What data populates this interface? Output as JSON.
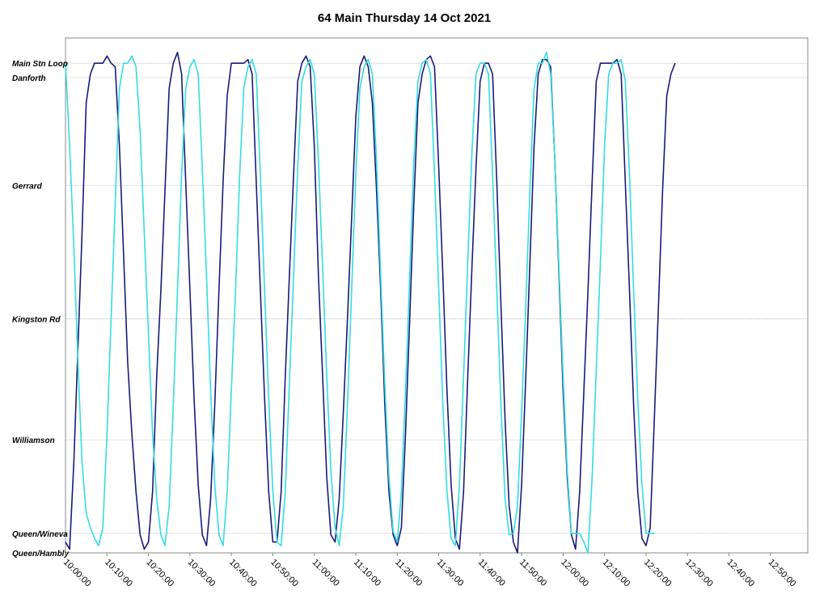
{
  "chart_data": {
    "type": "line",
    "title": "64 Main Thursday 14 Oct 2021",
    "xlabel": "",
    "ylabel": "",
    "x_ticks": [
      "10:00:00",
      "10:10:00",
      "10:20:00",
      "10:30:00",
      "10:40:00",
      "10:50:00",
      "11:00:00",
      "11:10:00",
      "11:20:00",
      "11:30:00",
      "11:40:00",
      "11:50:00",
      "12:00:00",
      "12:10:00",
      "12:20:00",
      "12:30:00",
      "12:40:00",
      "12:50:00"
    ],
    "xlim": [
      "10:00:00",
      "12:59:00"
    ],
    "y_stops": [
      {
        "name": "Main Stn Loop",
        "pos": 6.15
      },
      {
        "name": "Danforth",
        "pos": 5.95
      },
      {
        "name": "Gerrard",
        "pos": 4.45
      },
      {
        "name": "Kingston Rd",
        "pos": 2.6
      },
      {
        "name": "Williamson",
        "pos": 0.92
      },
      {
        "name": "Queen/Wineva",
        "pos": -0.38
      },
      {
        "name": "Queen/Hambly",
        "pos": -0.65
      }
    ],
    "ylim": [
      -0.65,
      6.5
    ],
    "grid": true,
    "legend": "none",
    "series": [
      {
        "color": "#1a1a7a",
        "points": [
          [
            "10:00",
            -0.5
          ],
          [
            "10:01",
            -0.6
          ],
          [
            "10:02",
            0.6
          ],
          [
            "10:03",
            2.2
          ],
          [
            "10:04",
            3.8
          ],
          [
            "10:05",
            5.6
          ],
          [
            "10:06",
            6.0
          ],
          [
            "10:07",
            6.15
          ],
          [
            "10:09",
            6.15
          ],
          [
            "10:10",
            6.25
          ],
          [
            "10:11",
            6.15
          ],
          [
            "10:12",
            6.1
          ],
          [
            "10:13",
            5.0
          ],
          [
            "10:14",
            3.5
          ],
          [
            "10:15",
            2.0
          ],
          [
            "10:16",
            1.0
          ],
          [
            "10:17",
            0.2
          ],
          [
            "10:18",
            -0.4
          ],
          [
            "10:19",
            -0.6
          ],
          [
            "10:20",
            -0.5
          ],
          [
            "10:21",
            0.2
          ],
          [
            "10:22",
            1.8
          ],
          [
            "10:23",
            3.0
          ],
          [
            "10:24",
            4.4
          ],
          [
            "10:25",
            5.8
          ],
          [
            "10:26",
            6.15
          ],
          [
            "10:27",
            6.3
          ],
          [
            "10:28",
            6.0
          ],
          [
            "10:29",
            4.5
          ],
          [
            "10:30",
            3.0
          ],
          [
            "10:31",
            1.5
          ],
          [
            "10:32",
            0.3
          ],
          [
            "10:33",
            -0.4
          ],
          [
            "10:34",
            -0.55
          ],
          [
            "10:35",
            0.1
          ],
          [
            "10:36",
            1.4
          ],
          [
            "10:37",
            3.0
          ],
          [
            "10:38",
            4.5
          ],
          [
            "10:39",
            5.7
          ],
          [
            "10:40",
            6.15
          ],
          [
            "10:41",
            6.15
          ],
          [
            "10:43",
            6.15
          ],
          [
            "10:44",
            6.2
          ],
          [
            "10:45",
            6.0
          ],
          [
            "10:46",
            4.5
          ],
          [
            "10:47",
            3.0
          ],
          [
            "10:48",
            1.5
          ],
          [
            "10:49",
            0.2
          ],
          [
            "10:50",
            -0.5
          ],
          [
            "10:51",
            -0.5
          ],
          [
            "10:52",
            0.2
          ],
          [
            "10:53",
            1.8
          ],
          [
            "10:54",
            3.2
          ],
          [
            "10:55",
            4.6
          ],
          [
            "10:56",
            5.9
          ],
          [
            "10:57",
            6.15
          ],
          [
            "10:58",
            6.25
          ],
          [
            "10:59",
            6.1
          ],
          [
            "11:00",
            5.0
          ],
          [
            "11:01",
            3.2
          ],
          [
            "11:02",
            1.8
          ],
          [
            "11:03",
            0.4
          ],
          [
            "11:04",
            -0.4
          ],
          [
            "11:05",
            -0.5
          ],
          [
            "11:06",
            0.1
          ],
          [
            "11:07",
            1.3
          ],
          [
            "11:08",
            2.6
          ],
          [
            "11:09",
            4.0
          ],
          [
            "11:10",
            5.4
          ],
          [
            "11:11",
            6.1
          ],
          [
            "11:12",
            6.25
          ],
          [
            "11:13",
            6.1
          ],
          [
            "11:14",
            5.6
          ],
          [
            "11:15",
            4.4
          ],
          [
            "11:16",
            3.0
          ],
          [
            "11:17",
            1.4
          ],
          [
            "11:18",
            0.2
          ],
          [
            "11:19",
            -0.4
          ],
          [
            "11:20",
            -0.55
          ],
          [
            "11:21",
            -0.3
          ],
          [
            "11:22",
            1.0
          ],
          [
            "11:23",
            2.6
          ],
          [
            "11:24",
            4.2
          ],
          [
            "11:25",
            5.6
          ],
          [
            "11:26",
            6.0
          ],
          [
            "11:27",
            6.2
          ],
          [
            "11:28",
            6.25
          ],
          [
            "11:29",
            6.1
          ],
          [
            "11:30",
            4.7
          ],
          [
            "11:31",
            3.2
          ],
          [
            "11:32",
            1.6
          ],
          [
            "11:33",
            0.3
          ],
          [
            "11:34",
            -0.45
          ],
          [
            "11:35",
            -0.6
          ],
          [
            "11:36",
            0.2
          ],
          [
            "11:37",
            1.8
          ],
          [
            "11:38",
            3.3
          ],
          [
            "11:39",
            4.7
          ],
          [
            "11:40",
            5.9
          ],
          [
            "11:41",
            6.15
          ],
          [
            "11:42",
            6.15
          ],
          [
            "11:43",
            6.0
          ],
          [
            "11:44",
            4.5
          ],
          [
            "11:45",
            2.8
          ],
          [
            "11:46",
            1.2
          ],
          [
            "11:47",
            0.0
          ],
          [
            "11:48",
            -0.5
          ],
          [
            "11:49",
            -0.7
          ],
          [
            "11:50",
            0.3
          ],
          [
            "11:51",
            1.8
          ],
          [
            "11:52",
            3.4
          ],
          [
            "11:53",
            5.0
          ],
          [
            "11:54",
            6.0
          ],
          [
            "11:55",
            6.2
          ],
          [
            "11:56",
            6.2
          ],
          [
            "11:57",
            6.1
          ],
          [
            "11:58",
            4.8
          ],
          [
            "11:59",
            3.2
          ],
          [
            "12:00",
            1.6
          ],
          [
            "12:01",
            0.4
          ],
          [
            "12:02",
            -0.4
          ],
          [
            "12:03",
            -0.6
          ],
          [
            "12:04",
            0.2
          ],
          [
            "12:05",
            1.6
          ],
          [
            "12:06",
            3.0
          ],
          [
            "12:07",
            4.5
          ],
          [
            "12:08",
            5.9
          ],
          [
            "12:09",
            6.15
          ],
          [
            "12:10",
            6.15
          ],
          [
            "12:12",
            6.15
          ],
          [
            "12:13",
            6.2
          ],
          [
            "12:14",
            6.0
          ],
          [
            "12:15",
            4.5
          ],
          [
            "12:16",
            3.0
          ],
          [
            "12:17",
            1.4
          ],
          [
            "12:18",
            0.2
          ],
          [
            "12:19",
            -0.45
          ],
          [
            "12:20",
            -0.55
          ],
          [
            "12:21",
            -0.3
          ],
          [
            "12:22",
            1.2
          ],
          [
            "12:23",
            2.8
          ],
          [
            "12:24",
            4.4
          ],
          [
            "12:25",
            5.7
          ],
          [
            "12:26",
            6.0
          ],
          [
            "12:27",
            6.15
          ]
        ]
      },
      {
        "color": "#33dddd",
        "points": [
          [
            "10:00",
            6.15
          ],
          [
            "10:01",
            5.0
          ],
          [
            "10:02",
            3.6
          ],
          [
            "10:03",
            2.0
          ],
          [
            "10:04",
            0.6
          ],
          [
            "10:05",
            -0.1
          ],
          [
            "10:06",
            -0.3
          ],
          [
            "10:07",
            -0.45
          ],
          [
            "10:08",
            -0.55
          ],
          [
            "10:09",
            -0.3
          ],
          [
            "10:10",
            1.0
          ],
          [
            "10:11",
            2.6
          ],
          [
            "10:12",
            4.2
          ],
          [
            "10:13",
            5.8
          ],
          [
            "10:14",
            6.15
          ],
          [
            "10:15",
            6.15
          ],
          [
            "10:16",
            6.25
          ],
          [
            "10:17",
            6.1
          ],
          [
            "10:18",
            5.2
          ],
          [
            "10:19",
            3.8
          ],
          [
            "10:20",
            2.4
          ],
          [
            "10:21",
            1.0
          ],
          [
            "10:22",
            0.1
          ],
          [
            "10:23",
            -0.4
          ],
          [
            "10:24",
            -0.55
          ],
          [
            "10:25",
            0.0
          ],
          [
            "10:26",
            1.4
          ],
          [
            "10:27",
            3.0
          ],
          [
            "10:28",
            4.6
          ],
          [
            "10:29",
            5.8
          ],
          [
            "10:30",
            6.1
          ],
          [
            "10:31",
            6.2
          ],
          [
            "10:32",
            6.0
          ],
          [
            "10:33",
            4.7
          ],
          [
            "10:34",
            3.2
          ],
          [
            "10:35",
            1.6
          ],
          [
            "10:36",
            0.3
          ],
          [
            "10:37",
            -0.4
          ],
          [
            "10:38",
            -0.55
          ],
          [
            "10:39",
            0.2
          ],
          [
            "10:40",
            1.6
          ],
          [
            "10:41",
            3.0
          ],
          [
            "10:42",
            4.6
          ],
          [
            "10:43",
            5.8
          ],
          [
            "10:44",
            6.1
          ],
          [
            "10:45",
            6.2
          ],
          [
            "10:46",
            6.0
          ],
          [
            "10:47",
            4.6
          ],
          [
            "10:48",
            3.0
          ],
          [
            "10:49",
            1.5
          ],
          [
            "10:50",
            0.2
          ],
          [
            "10:51",
            -0.5
          ],
          [
            "10:52",
            -0.55
          ],
          [
            "10:53",
            0.2
          ],
          [
            "10:54",
            1.7
          ],
          [
            "10:55",
            3.2
          ],
          [
            "10:56",
            4.7
          ],
          [
            "10:57",
            5.9
          ],
          [
            "10:58",
            6.1
          ],
          [
            "10:59",
            6.2
          ],
          [
            "11:00",
            6.0
          ],
          [
            "11:01",
            4.8
          ],
          [
            "11:02",
            3.3
          ],
          [
            "11:03",
            1.8
          ],
          [
            "11:04",
            0.5
          ],
          [
            "11:05",
            -0.3
          ],
          [
            "11:06",
            -0.55
          ],
          [
            "11:07",
            0.0
          ],
          [
            "11:08",
            1.4
          ],
          [
            "11:09",
            3.0
          ],
          [
            "11:10",
            4.6
          ],
          [
            "11:11",
            5.8
          ],
          [
            "11:12",
            6.1
          ],
          [
            "11:13",
            6.2
          ],
          [
            "11:14",
            6.0
          ],
          [
            "11:15",
            4.8
          ],
          [
            "11:16",
            3.2
          ],
          [
            "11:17",
            1.7
          ],
          [
            "11:18",
            0.4
          ],
          [
            "11:19",
            -0.35
          ],
          [
            "11:20",
            -0.5
          ],
          [
            "11:21",
            0.2
          ],
          [
            "11:22",
            1.6
          ],
          [
            "11:23",
            3.2
          ],
          [
            "11:24",
            4.8
          ],
          [
            "11:25",
            5.9
          ],
          [
            "11:26",
            6.15
          ],
          [
            "11:27",
            6.2
          ],
          [
            "11:28",
            6.0
          ],
          [
            "11:29",
            4.6
          ],
          [
            "11:30",
            3.0
          ],
          [
            "11:31",
            1.4
          ],
          [
            "11:32",
            0.2
          ],
          [
            "11:33",
            -0.45
          ],
          [
            "11:34",
            -0.55
          ],
          [
            "11:35",
            0.3
          ],
          [
            "11:36",
            1.8
          ],
          [
            "11:37",
            3.4
          ],
          [
            "11:38",
            4.9
          ],
          [
            "11:39",
            6.0
          ],
          [
            "11:40",
            6.15
          ],
          [
            "11:41",
            6.15
          ],
          [
            "11:42",
            6.0
          ],
          [
            "11:43",
            4.6
          ],
          [
            "11:44",
            3.0
          ],
          [
            "11:45",
            1.4
          ],
          [
            "11:46",
            0.1
          ],
          [
            "11:47",
            -0.4
          ],
          [
            "11:48",
            -0.38
          ],
          [
            "11:49",
            0.0
          ],
          [
            "11:50",
            1.3
          ],
          [
            "11:51",
            2.8
          ],
          [
            "11:52",
            4.4
          ],
          [
            "11:53",
            5.8
          ],
          [
            "11:54",
            6.15
          ],
          [
            "11:55",
            6.15
          ],
          [
            "11:56",
            6.3
          ],
          [
            "11:57",
            6.0
          ],
          [
            "11:58",
            4.8
          ],
          [
            "11:59",
            3.3
          ],
          [
            "12:00",
            1.8
          ],
          [
            "12:01",
            0.5
          ],
          [
            "12:02",
            -0.38
          ],
          [
            "12:03",
            -0.38
          ],
          [
            "12:04",
            -0.38
          ],
          [
            "12:05",
            -0.5
          ],
          [
            "12:06",
            -0.7
          ],
          [
            "12:07",
            0.4
          ],
          [
            "12:08",
            1.9
          ],
          [
            "12:09",
            3.4
          ],
          [
            "12:10",
            5.0
          ],
          [
            "12:11",
            6.0
          ],
          [
            "12:12",
            6.15
          ],
          [
            "12:13",
            6.15
          ],
          [
            "12:14",
            6.2
          ],
          [
            "12:15",
            5.9
          ],
          [
            "12:16",
            4.6
          ],
          [
            "12:17",
            3.0
          ],
          [
            "12:18",
            1.5
          ],
          [
            "12:19",
            0.3
          ],
          [
            "12:20",
            -0.38
          ],
          [
            "12:21",
            -0.38
          ],
          [
            "12:22",
            -0.38
          ]
        ]
      }
    ]
  }
}
